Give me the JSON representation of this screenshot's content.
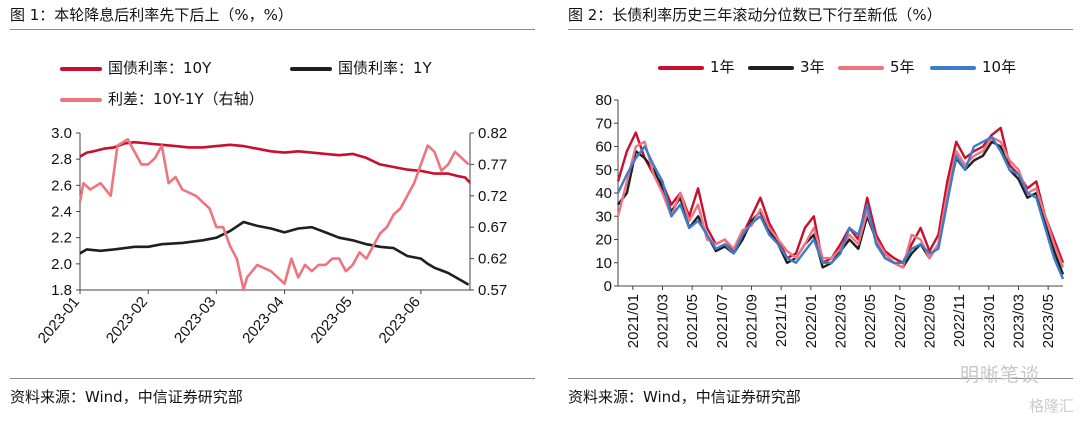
{
  "left": {
    "title": "图 1：本轮降息后利率先下后上（%，%）",
    "source": "资料来源：Wind，中信证券研究部",
    "legend": [
      "国债利率：10Y",
      "国债利率：1Y",
      "利差：10Y-1Y（右轴）"
    ]
  },
  "right": {
    "title": "图 2：长债利率历史三年滚动分位数已下行至新低（%）",
    "source": "资料来源：Wind，中信证券研究部",
    "legend": [
      "1年",
      "3年",
      "5年",
      "10年"
    ]
  },
  "watermark": {
    "main": "明晰笔谈",
    "sub": "格隆汇"
  },
  "colors": {
    "red": "#c8102e",
    "black": "#1f1f1f",
    "pink": "#ee7480",
    "blue": "#3d7cc9"
  },
  "chart_data": [
    {
      "type": "line",
      "x_ticks": [
        "2023-01",
        "2023-02",
        "2023-03",
        "2023-04",
        "2023-05",
        "2023-06"
      ],
      "ylim_left": [
        1.8,
        3.0
      ],
      "yticks_left": [
        "3.0",
        "2.8",
        "2.6",
        "2.4",
        "2.2",
        "2.0",
        "1.8"
      ],
      "ylim_right": [
        0.57,
        0.82
      ],
      "yticks_right": [
        "0.82",
        "0.77",
        "0.72",
        "0.67",
        "0.62",
        "0.57"
      ],
      "series": [
        {
          "name": "国债利率：10Y",
          "axis": "left",
          "x": [
            0,
            0.1,
            0.2,
            0.35,
            0.5,
            0.65,
            0.8,
            1.0,
            1.2,
            1.4,
            1.6,
            1.8,
            2.0,
            2.2,
            2.4,
            2.6,
            2.8,
            3.0,
            3.2,
            3.4,
            3.6,
            3.8,
            4.0,
            4.2,
            4.4,
            4.6,
            4.8,
            5.0,
            5.2,
            5.4,
            5.55,
            5.65,
            5.72
          ],
          "y": [
            2.82,
            2.85,
            2.86,
            2.88,
            2.89,
            2.92,
            2.93,
            2.92,
            2.91,
            2.9,
            2.89,
            2.89,
            2.9,
            2.91,
            2.9,
            2.88,
            2.86,
            2.85,
            2.86,
            2.85,
            2.84,
            2.83,
            2.84,
            2.81,
            2.76,
            2.74,
            2.72,
            2.71,
            2.69,
            2.69,
            2.67,
            2.66,
            2.62
          ]
        },
        {
          "name": "国债利率：1Y",
          "axis": "left",
          "x": [
            0,
            0.1,
            0.3,
            0.5,
            0.8,
            1.0,
            1.2,
            1.5,
            1.8,
            2.0,
            2.2,
            2.4,
            2.6,
            2.8,
            3.0,
            3.2,
            3.4,
            3.6,
            3.8,
            4.0,
            4.2,
            4.4,
            4.6,
            4.8,
            5.0,
            5.1,
            5.2,
            5.3,
            5.4,
            5.5,
            5.6,
            5.7
          ],
          "y": [
            2.08,
            2.11,
            2.1,
            2.11,
            2.13,
            2.13,
            2.15,
            2.16,
            2.18,
            2.2,
            2.25,
            2.32,
            2.29,
            2.27,
            2.24,
            2.27,
            2.28,
            2.24,
            2.2,
            2.18,
            2.15,
            2.13,
            2.12,
            2.06,
            2.04,
            2.0,
            1.97,
            1.95,
            1.93,
            1.9,
            1.87,
            1.84
          ]
        },
        {
          "name": "利差：10Y-1Y（右轴）",
          "axis": "right",
          "x": [
            0,
            0.05,
            0.15,
            0.3,
            0.45,
            0.55,
            0.7,
            0.8,
            0.9,
            1.0,
            1.1,
            1.2,
            1.3,
            1.4,
            1.5,
            1.7,
            1.9,
            2.0,
            2.1,
            2.2,
            2.3,
            2.4,
            2.45,
            2.6,
            2.8,
            2.9,
            3.0,
            3.1,
            3.2,
            3.3,
            3.4,
            3.5,
            3.6,
            3.7,
            3.8,
            3.9,
            4.0,
            4.1,
            4.2,
            4.3,
            4.4,
            4.5,
            4.6,
            4.7,
            4.8,
            4.9,
            5.0,
            5.1,
            5.2,
            5.3,
            5.4,
            5.5,
            5.6,
            5.7
          ],
          "y": [
            0.71,
            0.74,
            0.73,
            0.74,
            0.72,
            0.8,
            0.81,
            0.79,
            0.77,
            0.77,
            0.78,
            0.8,
            0.74,
            0.75,
            0.73,
            0.72,
            0.7,
            0.67,
            0.67,
            0.64,
            0.62,
            0.57,
            0.59,
            0.61,
            0.6,
            0.59,
            0.58,
            0.62,
            0.59,
            0.61,
            0.6,
            0.61,
            0.61,
            0.62,
            0.62,
            0.6,
            0.61,
            0.63,
            0.62,
            0.64,
            0.66,
            0.67,
            0.69,
            0.7,
            0.72,
            0.74,
            0.77,
            0.8,
            0.79,
            0.76,
            0.77,
            0.79,
            0.78,
            0.77
          ]
        }
      ]
    },
    {
      "type": "line",
      "ylim": [
        0,
        80
      ],
      "yticks": [
        "80",
        "70",
        "60",
        "50",
        "40",
        "30",
        "20",
        "10",
        "0"
      ],
      "x_ticks": [
        "2021/01",
        "2021/03",
        "2021/05",
        "2021/07",
        "2021/09",
        "2021/11",
        "2022/01",
        "2022/03",
        "2022/05",
        "2022/07",
        "2022/09",
        "2022/11",
        "2023/01",
        "2023/03",
        "2023/05"
      ],
      "series": [
        {
          "name": "1年",
          "x": [
            0,
            0.3,
            0.6,
            0.9,
            1.2,
            1.5,
            1.8,
            2.1,
            2.4,
            2.7,
            3.0,
            3.3,
            3.6,
            3.9,
            4.2,
            4.5,
            4.8,
            5.1,
            5.4,
            5.7,
            6.0,
            6.3,
            6.6,
            6.9,
            7.2,
            7.5,
            7.8,
            8.1,
            8.4,
            8.7,
            9.0,
            9.3,
            9.6,
            9.9,
            10.2,
            10.5,
            10.8,
            11.1,
            11.4,
            11.7,
            12.0,
            12.3,
            12.6,
            12.9,
            13.2,
            13.5,
            13.8,
            14.1,
            14.4,
            14.7,
            15.0
          ],
          "y": [
            45,
            58,
            66,
            55,
            48,
            44,
            35,
            40,
            30,
            42,
            25,
            18,
            20,
            15,
            22,
            30,
            38,
            27,
            20,
            12,
            14,
            25,
            30,
            10,
            12,
            18,
            25,
            20,
            38,
            22,
            15,
            12,
            10,
            18,
            25,
            15,
            22,
            45,
            62,
            55,
            58,
            60,
            65,
            68,
            52,
            48,
            42,
            45,
            30,
            20,
            10
          ]
        },
        {
          "name": "3年",
          "x": [
            0,
            0.3,
            0.6,
            0.9,
            1.2,
            1.5,
            1.8,
            2.1,
            2.4,
            2.7,
            3.0,
            3.3,
            3.6,
            3.9,
            4.2,
            4.5,
            4.8,
            5.1,
            5.4,
            5.7,
            6.0,
            6.3,
            6.6,
            6.9,
            7.2,
            7.5,
            7.8,
            8.1,
            8.4,
            8.7,
            9.0,
            9.3,
            9.6,
            9.9,
            10.2,
            10.5,
            10.8,
            11.1,
            11.4,
            11.7,
            12.0,
            12.3,
            12.6,
            12.9,
            13.2,
            13.5,
            13.8,
            14.1,
            14.4,
            14.7,
            15.0
          ],
          "y": [
            35,
            40,
            58,
            55,
            50,
            42,
            32,
            38,
            25,
            30,
            22,
            15,
            17,
            14,
            20,
            28,
            32,
            24,
            18,
            10,
            12,
            18,
            22,
            8,
            10,
            15,
            20,
            16,
            30,
            20,
            12,
            10,
            8,
            14,
            18,
            12,
            18,
            38,
            55,
            50,
            54,
            56,
            62,
            60,
            50,
            46,
            38,
            40,
            28,
            15,
            5
          ]
        },
        {
          "name": "5年",
          "x": [
            0,
            0.3,
            0.6,
            0.9,
            1.2,
            1.5,
            1.8,
            2.1,
            2.4,
            2.7,
            3.0,
            3.3,
            3.6,
            3.9,
            4.2,
            4.5,
            4.8,
            5.1,
            5.4,
            5.7,
            6.0,
            6.3,
            6.6,
            6.9,
            7.2,
            7.5,
            7.8,
            8.1,
            8.4,
            8.7,
            9.0,
            9.3,
            9.6,
            9.9,
            10.2,
            10.5,
            10.8,
            11.1,
            11.4,
            11.7,
            12.0,
            12.3,
            12.6,
            12.9,
            13.2,
            13.5,
            13.8,
            14.1,
            14.4,
            14.7,
            15.0
          ],
          "y": [
            30,
            45,
            60,
            62,
            48,
            40,
            30,
            40,
            28,
            35,
            20,
            18,
            20,
            16,
            24,
            26,
            33,
            25,
            20,
            15,
            12,
            18,
            25,
            12,
            12,
            16,
            22,
            18,
            32,
            20,
            14,
            10,
            8,
            22,
            20,
            12,
            18,
            40,
            58,
            52,
            56,
            58,
            64,
            62,
            54,
            50,
            40,
            42,
            30,
            18,
            8
          ]
        },
        {
          "name": "10年",
          "x": [
            0,
            0.3,
            0.6,
            0.9,
            1.2,
            1.5,
            1.8,
            2.1,
            2.4,
            2.7,
            3.0,
            3.3,
            3.6,
            3.9,
            4.2,
            4.5,
            4.8,
            5.1,
            5.4,
            5.7,
            6.0,
            6.3,
            6.6,
            6.9,
            7.2,
            7.5,
            7.8,
            8.1,
            8.4,
            8.7,
            9.0,
            9.3,
            9.6,
            9.9,
            10.2,
            10.5,
            10.8,
            11.1,
            11.4,
            11.7,
            12.0,
            12.3,
            12.6,
            12.9,
            13.2,
            13.5,
            13.8,
            14.1,
            14.4,
            14.7,
            15.0
          ],
          "y": [
            40,
            48,
            55,
            60,
            52,
            45,
            30,
            35,
            25,
            28,
            22,
            16,
            18,
            14,
            22,
            27,
            30,
            22,
            18,
            12,
            10,
            15,
            20,
            10,
            10,
            14,
            25,
            22,
            35,
            18,
            12,
            10,
            10,
            16,
            18,
            14,
            16,
            36,
            56,
            50,
            60,
            62,
            64,
            58,
            50,
            48,
            40,
            38,
            25,
            12,
            3
          ]
        }
      ]
    }
  ]
}
